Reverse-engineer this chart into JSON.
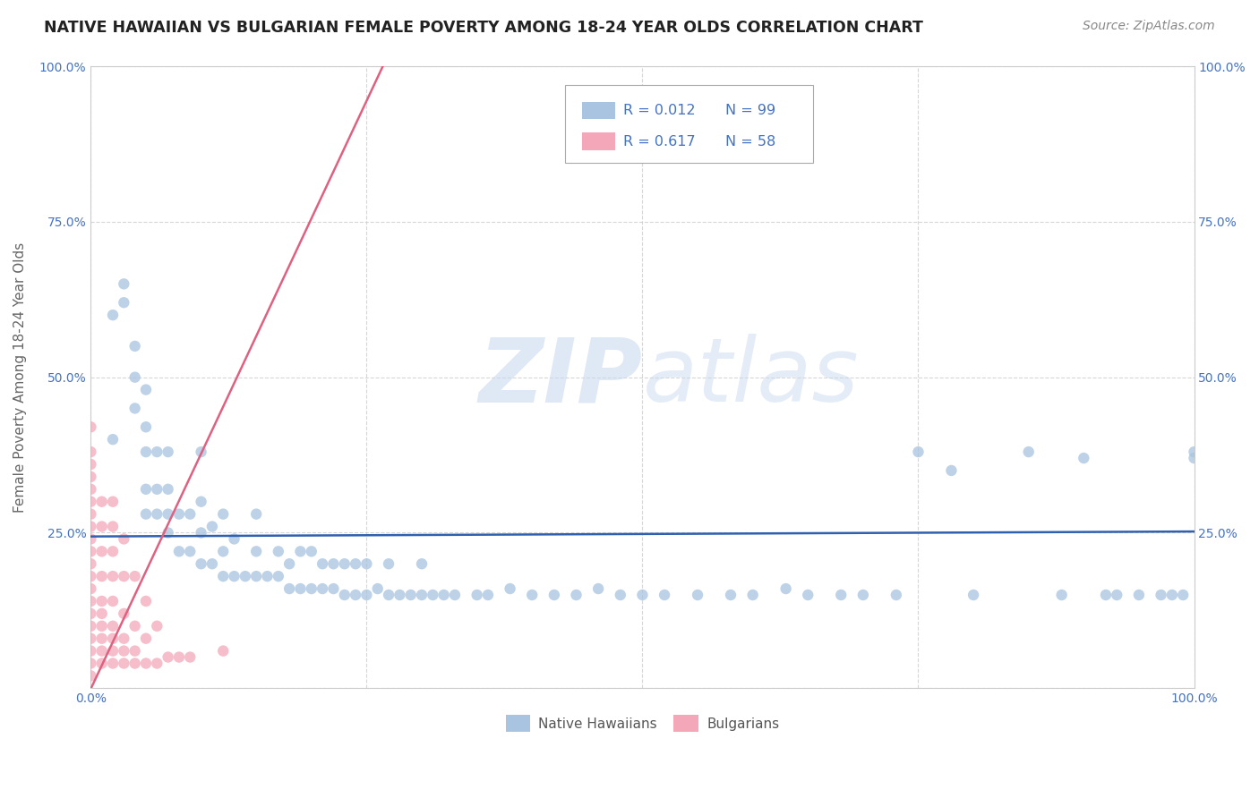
{
  "title": "NATIVE HAWAIIAN VS BULGARIAN FEMALE POVERTY AMONG 18-24 YEAR OLDS CORRELATION CHART",
  "source": "Source: ZipAtlas.com",
  "ylabel": "Female Poverty Among 18-24 Year Olds",
  "xlim": [
    0,
    1.0
  ],
  "ylim": [
    0,
    1.0
  ],
  "color_hawaiian": "#a8c4e0",
  "color_bulgarian": "#f4a7b9",
  "color_line_hawaiian": "#3060b0",
  "color_line_bulgarian": "#e06080",
  "color_text_blue": "#4472c4",
  "color_text_dark": "#333333",
  "background_color": "#ffffff",
  "grid_color": "#cccccc",
  "watermark_zip": "ZIP",
  "watermark_atlas": "atlas",
  "hawaiian_x": [
    0.02,
    0.02,
    0.03,
    0.03,
    0.04,
    0.04,
    0.04,
    0.05,
    0.05,
    0.05,
    0.05,
    0.05,
    0.06,
    0.06,
    0.06,
    0.07,
    0.07,
    0.07,
    0.07,
    0.08,
    0.08,
    0.09,
    0.09,
    0.1,
    0.1,
    0.1,
    0.1,
    0.11,
    0.11,
    0.12,
    0.12,
    0.12,
    0.13,
    0.13,
    0.14,
    0.15,
    0.15,
    0.15,
    0.16,
    0.17,
    0.17,
    0.18,
    0.18,
    0.19,
    0.19,
    0.2,
    0.2,
    0.21,
    0.21,
    0.22,
    0.22,
    0.23,
    0.23,
    0.24,
    0.24,
    0.25,
    0.25,
    0.26,
    0.27,
    0.27,
    0.28,
    0.29,
    0.3,
    0.3,
    0.31,
    0.32,
    0.33,
    0.35,
    0.36,
    0.38,
    0.4,
    0.42,
    0.44,
    0.46,
    0.48,
    0.5,
    0.52,
    0.55,
    0.58,
    0.6,
    0.63,
    0.65,
    0.68,
    0.7,
    0.73,
    0.75,
    0.78,
    0.8,
    0.85,
    0.88,
    0.9,
    0.92,
    0.93,
    0.95,
    0.97,
    0.98,
    0.99,
    1.0,
    1.0
  ],
  "hawaiian_y": [
    0.4,
    0.6,
    0.62,
    0.65,
    0.45,
    0.5,
    0.55,
    0.28,
    0.32,
    0.38,
    0.42,
    0.48,
    0.28,
    0.32,
    0.38,
    0.25,
    0.28,
    0.32,
    0.38,
    0.22,
    0.28,
    0.22,
    0.28,
    0.2,
    0.25,
    0.3,
    0.38,
    0.2,
    0.26,
    0.18,
    0.22,
    0.28,
    0.18,
    0.24,
    0.18,
    0.18,
    0.22,
    0.28,
    0.18,
    0.18,
    0.22,
    0.16,
    0.2,
    0.16,
    0.22,
    0.16,
    0.22,
    0.16,
    0.2,
    0.16,
    0.2,
    0.15,
    0.2,
    0.15,
    0.2,
    0.15,
    0.2,
    0.16,
    0.15,
    0.2,
    0.15,
    0.15,
    0.15,
    0.2,
    0.15,
    0.15,
    0.15,
    0.15,
    0.15,
    0.16,
    0.15,
    0.15,
    0.15,
    0.16,
    0.15,
    0.15,
    0.15,
    0.15,
    0.15,
    0.15,
    0.16,
    0.15,
    0.15,
    0.15,
    0.15,
    0.38,
    0.35,
    0.15,
    0.38,
    0.15,
    0.37,
    0.15,
    0.15,
    0.15,
    0.15,
    0.15,
    0.15,
    0.37,
    0.38
  ],
  "bulgarian_x": [
    0.0,
    0.0,
    0.0,
    0.0,
    0.0,
    0.0,
    0.0,
    0.0,
    0.0,
    0.0,
    0.0,
    0.0,
    0.0,
    0.0,
    0.0,
    0.0,
    0.0,
    0.0,
    0.0,
    0.0,
    0.01,
    0.01,
    0.01,
    0.01,
    0.01,
    0.01,
    0.01,
    0.01,
    0.01,
    0.01,
    0.02,
    0.02,
    0.02,
    0.02,
    0.02,
    0.02,
    0.02,
    0.02,
    0.02,
    0.03,
    0.03,
    0.03,
    0.03,
    0.03,
    0.03,
    0.04,
    0.04,
    0.04,
    0.04,
    0.05,
    0.05,
    0.05,
    0.06,
    0.06,
    0.07,
    0.08,
    0.09,
    0.12
  ],
  "bulgarian_y": [
    0.02,
    0.04,
    0.06,
    0.08,
    0.1,
    0.12,
    0.14,
    0.16,
    0.18,
    0.2,
    0.22,
    0.24,
    0.26,
    0.28,
    0.3,
    0.32,
    0.34,
    0.36,
    0.38,
    0.42,
    0.04,
    0.06,
    0.08,
    0.1,
    0.12,
    0.14,
    0.18,
    0.22,
    0.26,
    0.3,
    0.04,
    0.06,
    0.08,
    0.1,
    0.14,
    0.18,
    0.22,
    0.26,
    0.3,
    0.04,
    0.06,
    0.08,
    0.12,
    0.18,
    0.24,
    0.04,
    0.06,
    0.1,
    0.18,
    0.04,
    0.08,
    0.14,
    0.04,
    0.1,
    0.05,
    0.05,
    0.05,
    0.06
  ],
  "line_haw_x0": 0.0,
  "line_haw_x1": 1.0,
  "line_haw_y0": 0.244,
  "line_haw_y1": 0.252,
  "line_bul_x0": -0.005,
  "line_bul_x1": 0.27,
  "line_bul_y0": -0.02,
  "line_bul_y1": 1.02
}
